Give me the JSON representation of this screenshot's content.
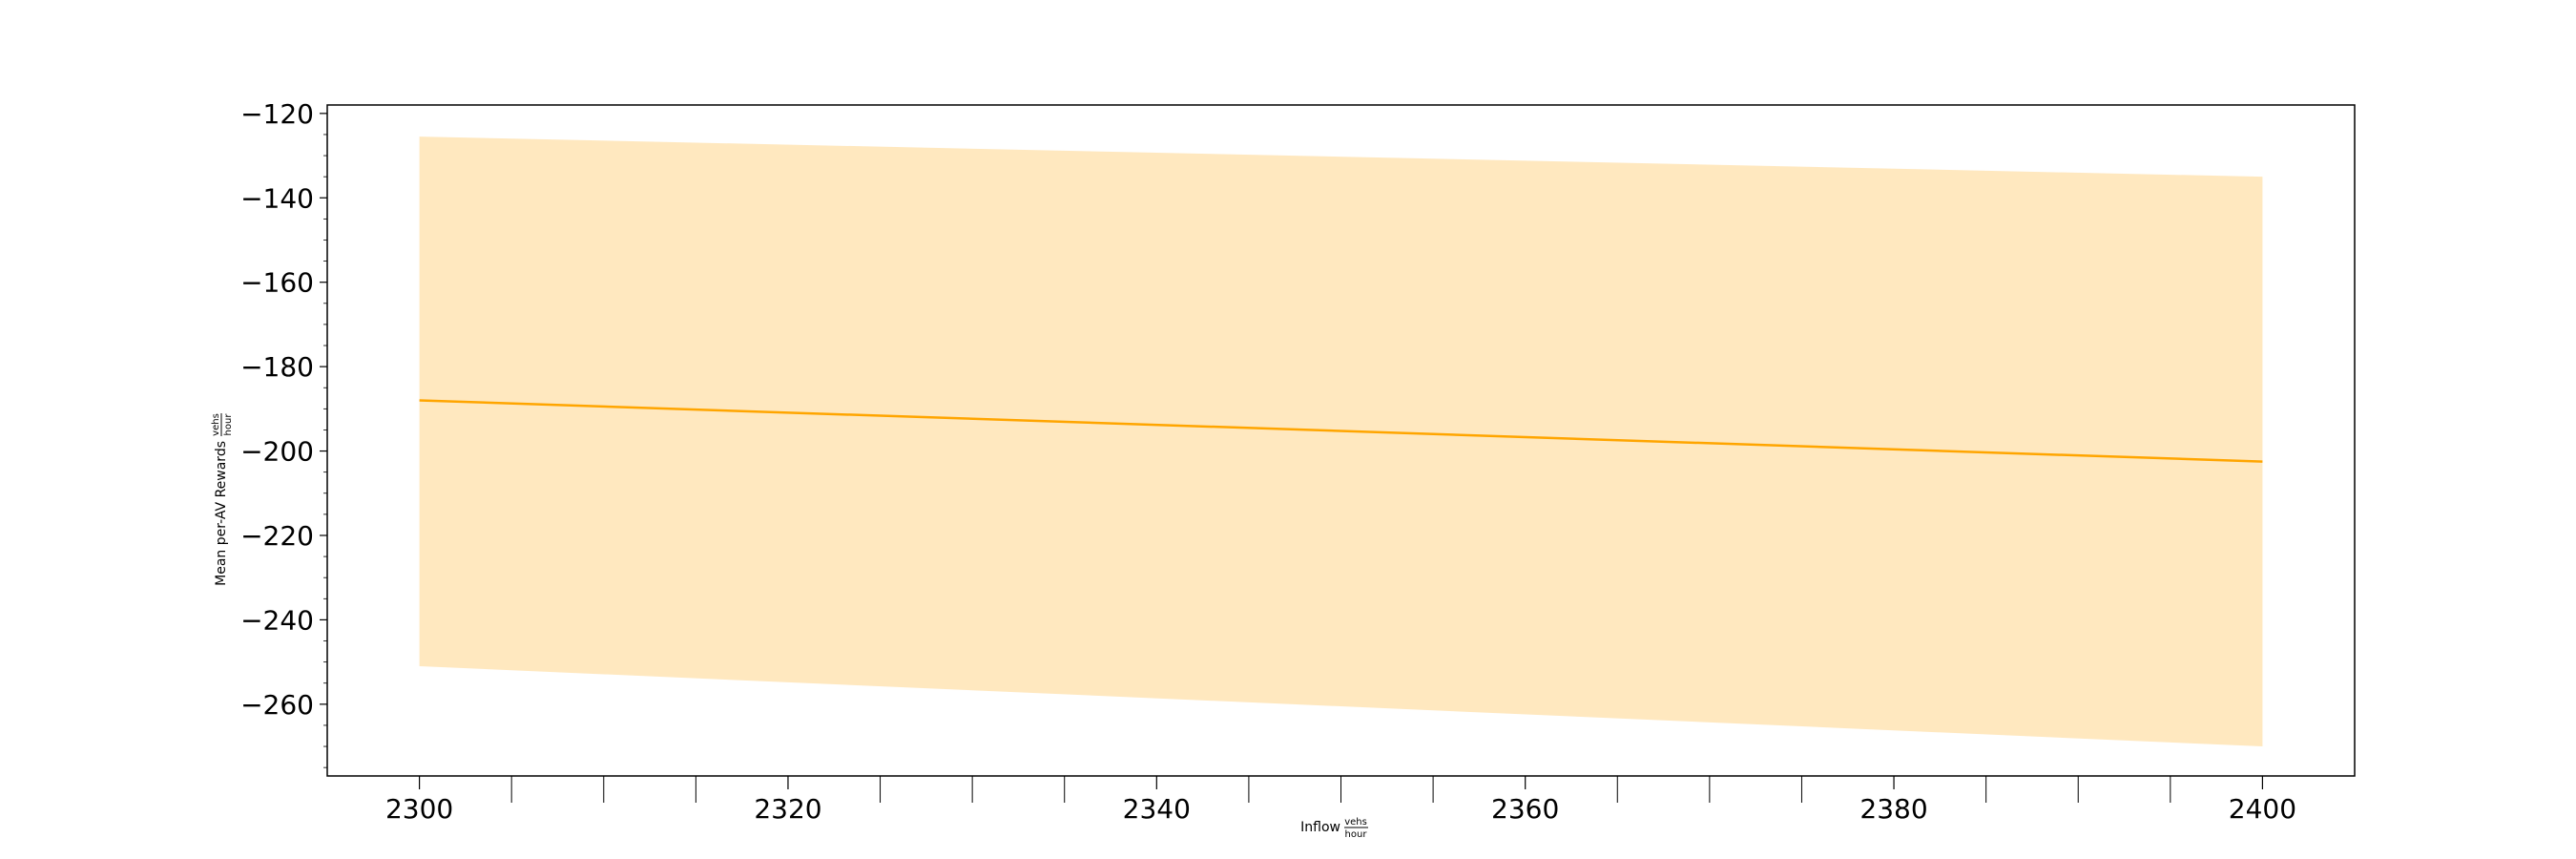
{
  "chart_data": {
    "type": "line",
    "title": "",
    "xlabel": "Inflow",
    "xlabel_unit_num": "vehs",
    "xlabel_unit_den": "hour",
    "ylabel": "Mean per-AV Rewards",
    "ylabel_unit_num": "vehs",
    "ylabel_unit_den": "hour",
    "xlim": [
      2295,
      2405
    ],
    "ylim": [
      -277,
      -118
    ],
    "xticks": [
      2300,
      2320,
      2340,
      2360,
      2380,
      2400
    ],
    "xticks_minor": [
      2305,
      2310,
      2315,
      2325,
      2330,
      2335,
      2345,
      2350,
      2355,
      2365,
      2370,
      2375,
      2385,
      2390,
      2395
    ],
    "yticks": [
      -120,
      -140,
      -160,
      -180,
      -200,
      -220,
      -240,
      -260
    ],
    "grid": false,
    "colors": {
      "line": "#ffa500",
      "band": "#ffa500"
    },
    "series": [
      {
        "x": [
          2300,
          2400
        ],
        "y": [
          -188,
          -202.5
        ],
        "upper": [
          -125.5,
          -135
        ],
        "lower": [
          -251,
          -270
        ]
      }
    ]
  }
}
